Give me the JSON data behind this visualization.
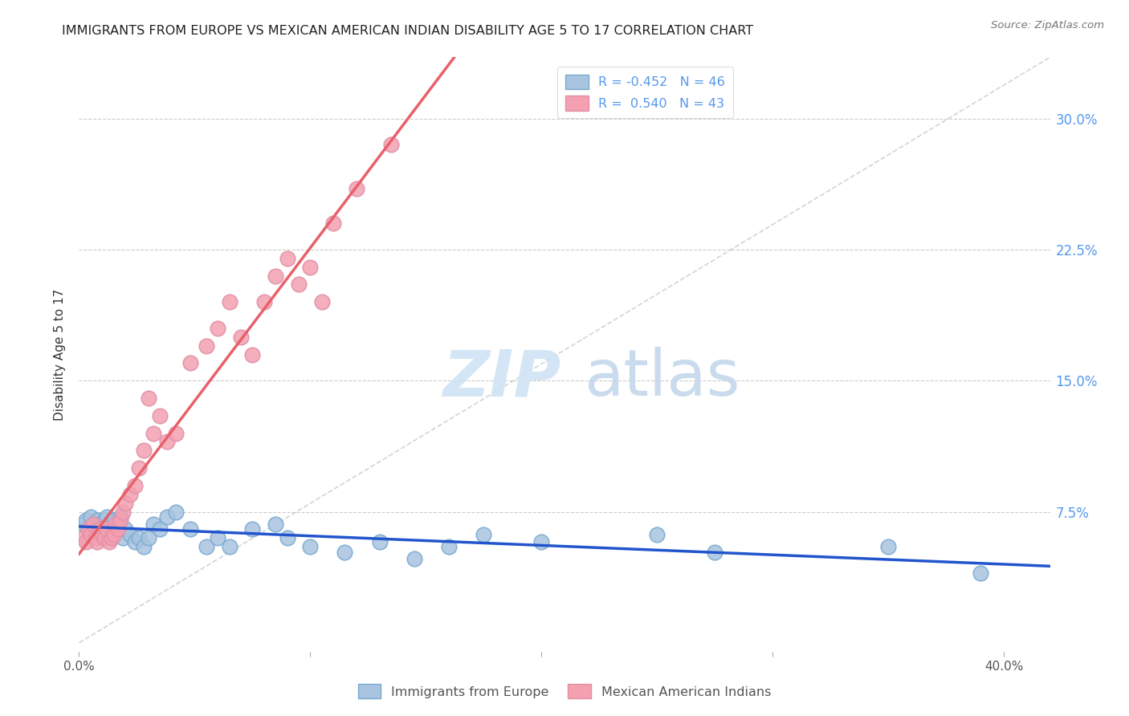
{
  "title": "IMMIGRANTS FROM EUROPE VS MEXICAN AMERICAN INDIAN DISABILITY AGE 5 TO 17 CORRELATION CHART",
  "source": "Source: ZipAtlas.com",
  "ylabel": "Disability Age 5 to 17",
  "y_ticks": [
    0.0,
    0.075,
    0.15,
    0.225,
    0.3
  ],
  "y_tick_labels": [
    "",
    "7.5%",
    "15.0%",
    "22.5%",
    "30.0%"
  ],
  "x_ticks": [
    0.0,
    0.1,
    0.2,
    0.3,
    0.4
  ],
  "x_tick_labels": [
    "0.0%",
    "",
    "",
    "",
    "40.0%"
  ],
  "xlim": [
    0.0,
    0.42
  ],
  "ylim": [
    -0.005,
    0.335
  ],
  "legend1_label": "R = -0.452   N = 46",
  "legend2_label": "R =  0.540   N = 43",
  "series1_color": "#a8c4e0",
  "series2_color": "#f4a0b0",
  "line1_color": "#2255cc",
  "line2_color": "#e8606a",
  "diag_color": "#b8c4cc",
  "series1_name": "Immigrants from Europe",
  "series2_name": "Mexican American Indians",
  "blue_x": [
    0.002,
    0.003,
    0.004,
    0.005,
    0.006,
    0.007,
    0.008,
    0.009,
    0.01,
    0.011,
    0.012,
    0.013,
    0.014,
    0.015,
    0.016,
    0.017,
    0.018,
    0.019,
    0.02,
    0.022,
    0.024,
    0.026,
    0.028,
    0.03,
    0.032,
    0.035,
    0.038,
    0.042,
    0.048,
    0.055,
    0.06,
    0.065,
    0.075,
    0.085,
    0.09,
    0.1,
    0.115,
    0.13,
    0.145,
    0.16,
    0.175,
    0.2,
    0.25,
    0.275,
    0.35,
    0.39
  ],
  "blue_y": [
    0.068,
    0.07,
    0.065,
    0.072,
    0.068,
    0.065,
    0.07,
    0.068,
    0.065,
    0.07,
    0.072,
    0.065,
    0.068,
    0.07,
    0.065,
    0.068,
    0.072,
    0.06,
    0.065,
    0.062,
    0.058,
    0.06,
    0.055,
    0.06,
    0.068,
    0.065,
    0.072,
    0.075,
    0.065,
    0.055,
    0.06,
    0.055,
    0.065,
    0.068,
    0.06,
    0.055,
    0.052,
    0.058,
    0.048,
    0.055,
    0.062,
    0.058,
    0.062,
    0.052,
    0.055,
    0.04
  ],
  "pink_x": [
    0.002,
    0.003,
    0.004,
    0.005,
    0.006,
    0.007,
    0.008,
    0.009,
    0.01,
    0.011,
    0.012,
    0.013,
    0.014,
    0.015,
    0.016,
    0.017,
    0.018,
    0.019,
    0.02,
    0.022,
    0.024,
    0.026,
    0.028,
    0.03,
    0.032,
    0.035,
    0.038,
    0.042,
    0.048,
    0.055,
    0.06,
    0.065,
    0.07,
    0.075,
    0.08,
    0.085,
    0.09,
    0.095,
    0.1,
    0.105,
    0.11,
    0.12,
    0.135
  ],
  "pink_y": [
    0.06,
    0.058,
    0.065,
    0.062,
    0.068,
    0.06,
    0.058,
    0.065,
    0.062,
    0.06,
    0.065,
    0.058,
    0.06,
    0.062,
    0.068,
    0.065,
    0.07,
    0.075,
    0.08,
    0.085,
    0.09,
    0.1,
    0.11,
    0.14,
    0.12,
    0.13,
    0.115,
    0.12,
    0.16,
    0.17,
    0.18,
    0.195,
    0.175,
    0.165,
    0.195,
    0.21,
    0.22,
    0.205,
    0.215,
    0.195,
    0.24,
    0.26,
    0.285
  ]
}
